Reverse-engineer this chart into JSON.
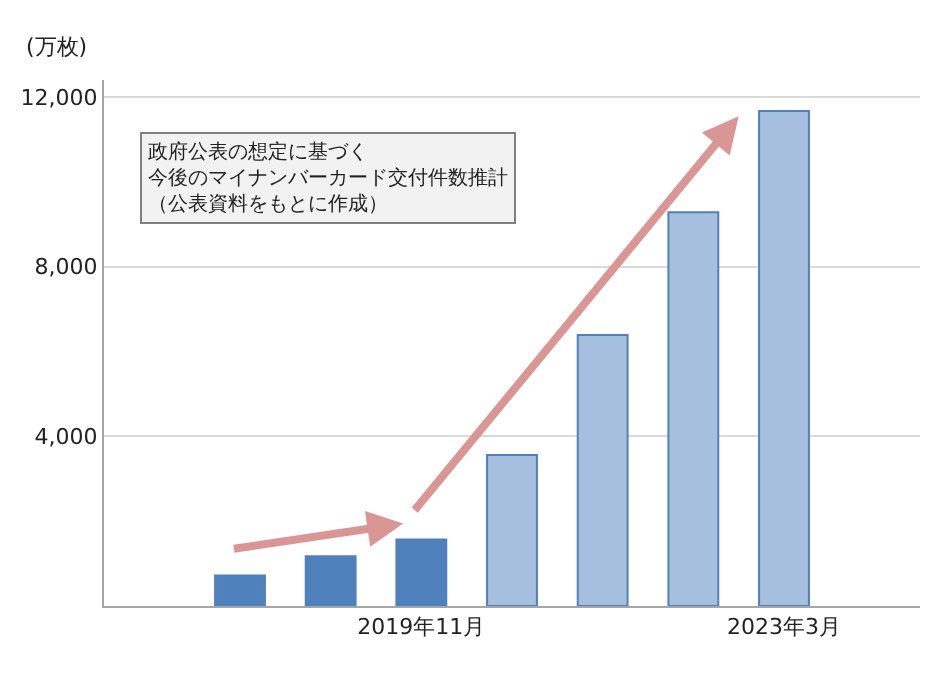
{
  "chart_data": {
    "type": "bar",
    "ylabel": "(万枚)",
    "categories": [
      null,
      null,
      null,
      "2019年11月",
      null,
      null,
      null,
      "2023年3月",
      null
    ],
    "values": [
      null,
      720,
      1170,
      1570,
      3560,
      6390,
      9280,
      11670,
      null
    ],
    "colors": [
      "#4f81bd",
      "#4f81bd",
      "#4f81bd",
      "#4f81bd",
      "#a7bfdf",
      "#a7bfdf",
      "#a7bfdf",
      "#a7bfdf",
      "#4f81bd"
    ],
    "ylim": [
      0,
      12400
    ],
    "yticks": [
      {
        "value": 4000,
        "label": "4,000"
      },
      {
        "value": 8000,
        "label": "8,000"
      },
      {
        "value": 12000,
        "label": "12,000"
      }
    ],
    "grid": "y",
    "annotations": [
      "政府公表の想定に基づく",
      "今後のマイナンバーカード交付件数推計",
      "（公表資料をもとに作成）"
    ]
  }
}
